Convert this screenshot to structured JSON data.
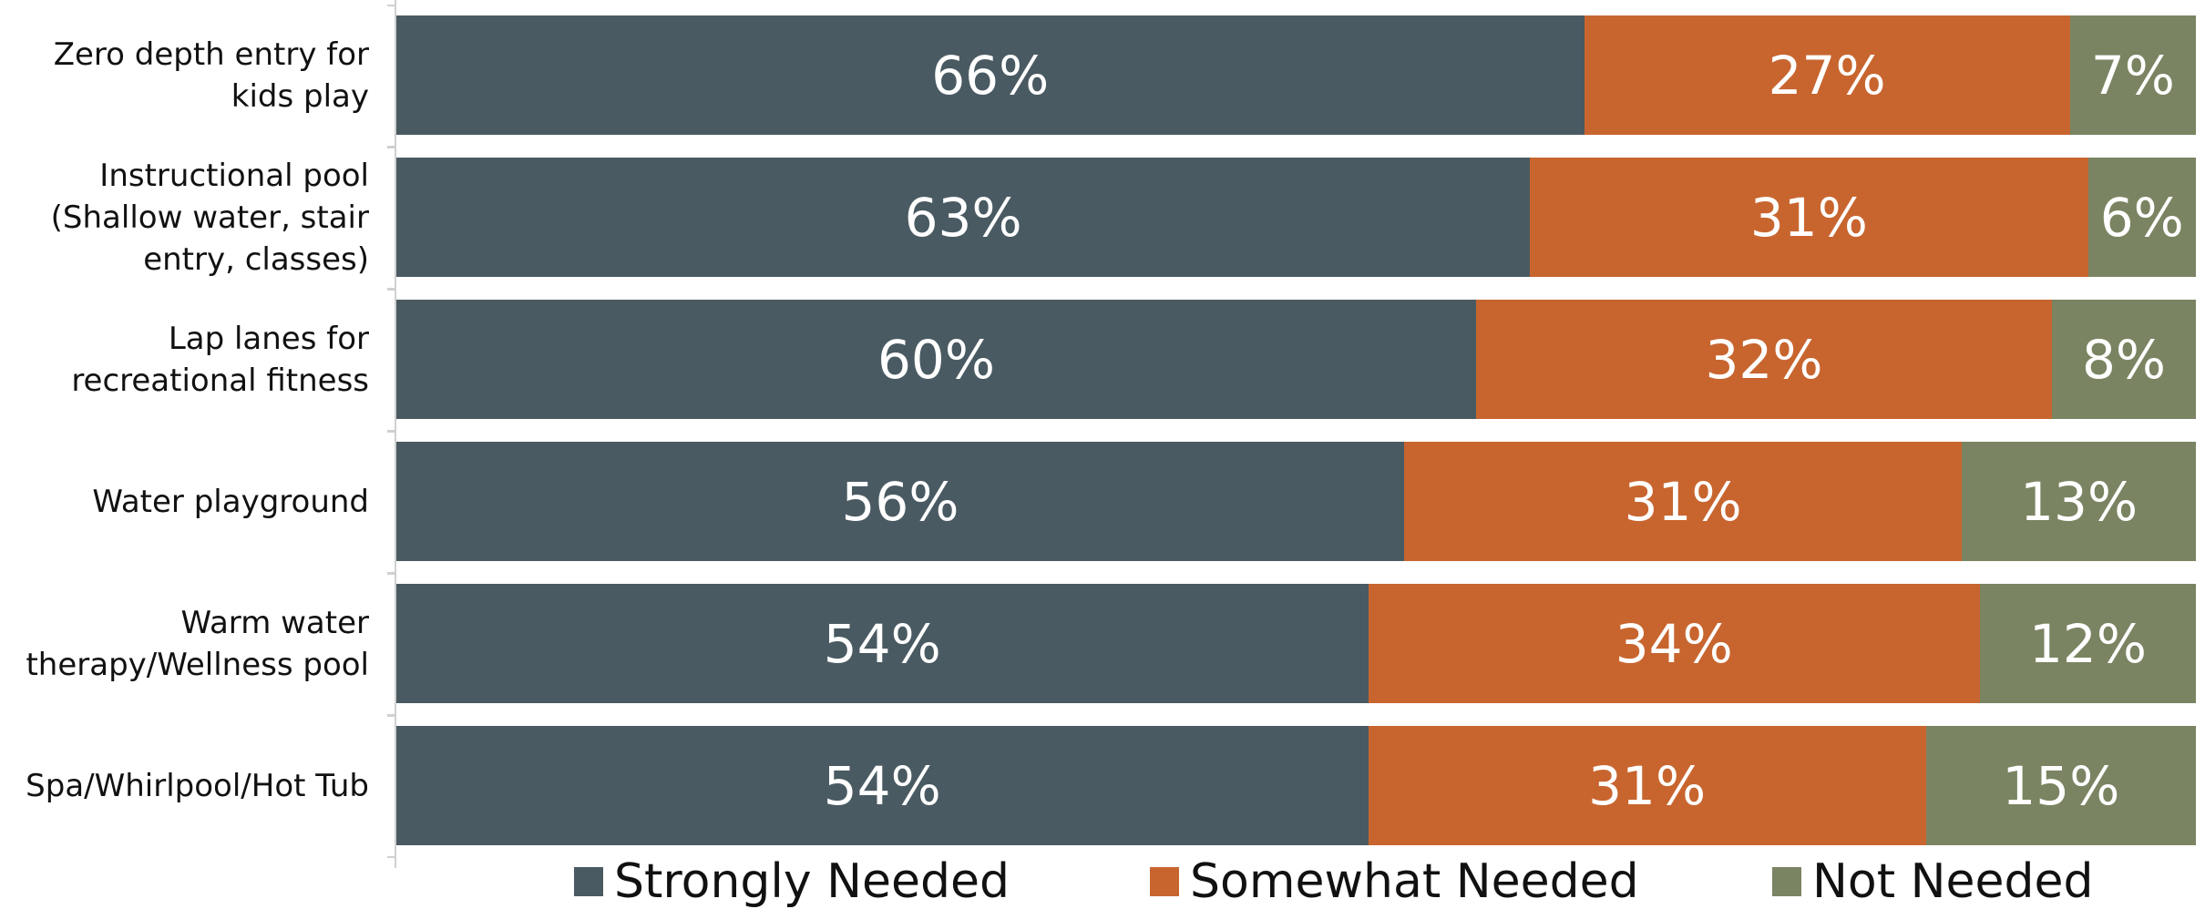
{
  "chart_data": {
    "type": "stacked-bar-horizontal",
    "categories": [
      "Zero depth entry for kids play",
      "Instructional pool (Shallow water, stair entry, classes)",
      "Lap lanes for recreational fitness",
      "Water playground",
      "Warm water therapy/Wellness pool",
      "Spa/Whirlpool/Hot Tub"
    ],
    "series": [
      {
        "name": "Strongly Needed",
        "color": "#4a5a62",
        "values": [
          66,
          63,
          60,
          56,
          54,
          54
        ],
        "value_labels": [
          "66%",
          "63%",
          "60%",
          "56%",
          "54%",
          "54%"
        ]
      },
      {
        "name": "Somewhat Needed",
        "color": "#c8652f",
        "values": [
          27,
          31,
          32,
          31,
          34,
          31
        ],
        "value_labels": [
          "27%",
          "31%",
          "32%",
          "31%",
          "34%",
          "31%"
        ]
      },
      {
        "name": "Not Needed",
        "color": "#7a8462",
        "values": [
          7,
          6,
          8,
          13,
          12,
          15
        ],
        "value_labels": [
          "7%",
          "6%",
          "8%",
          "13%",
          "12%",
          "15%"
        ]
      }
    ],
    "legend": "bottom"
  }
}
